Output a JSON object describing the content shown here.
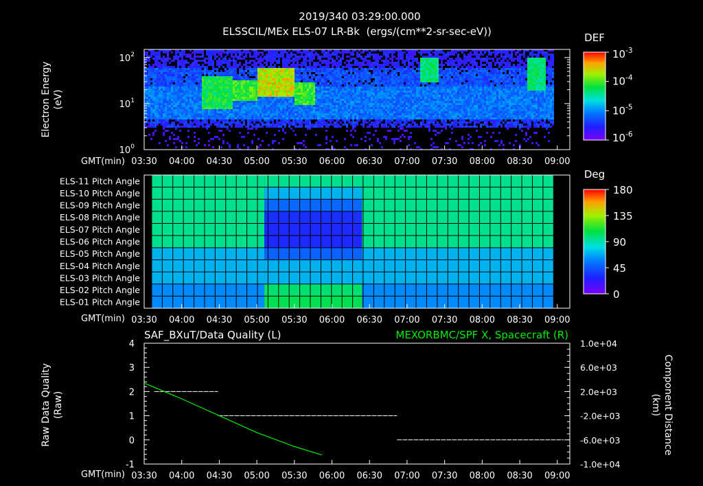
{
  "colors": {
    "background": "#000000",
    "axis": "#ffffff",
    "model_line": "#00ee00",
    "model_label": "#00ee00"
  },
  "header": {
    "timestamp": "2019/340 03:29:00.000",
    "subtitle": "ELSSCIL/MEx ELS-07 LR-Bk  (ergs/(cm**2-sr-sec-eV))"
  },
  "chart_data": [
    {
      "type": "heatmap",
      "name": "electron-spectrogram",
      "ylabel": [
        "Electron Energy",
        "(eV)"
      ],
      "yscale": "log",
      "ylim": [
        1,
        150
      ],
      "yticks": [
        {
          "value": 1,
          "label": "10",
          "exp": "0"
        },
        {
          "value": 10,
          "label": "10",
          "exp": "1"
        },
        {
          "value": 100,
          "label": "10",
          "exp": "2"
        }
      ],
      "x_axis_label": "GMT(min)",
      "xticks": [
        "03:30",
        "04:00",
        "04:30",
        "05:00",
        "05:30",
        "06:00",
        "06:30",
        "07:00",
        "07:30",
        "08:00",
        "08:30",
        "09:00"
      ],
      "xlim_min": [
        210,
        550
      ],
      "data_end_min": 537,
      "colorbar": {
        "title": "DEF",
        "scale": "log",
        "ticks": [
          {
            "label": "10",
            "exp": "-3"
          },
          {
            "label": "10",
            "exp": "-4"
          },
          {
            "label": "10",
            "exp": "-5"
          },
          {
            "label": "10",
            "exp": "-6"
          }
        ]
      },
      "features": [
        {
          "t_min": 256,
          "t_max": 280,
          "e_min": 8,
          "e_max": 40,
          "level": 0.65
        },
        {
          "t_min": 280,
          "t_max": 300,
          "e_min": 12,
          "e_max": 35,
          "level": 0.7
        },
        {
          "t_min": 300,
          "t_max": 330,
          "e_min": 15,
          "e_max": 60,
          "level": 0.85
        },
        {
          "t_min": 330,
          "t_max": 346,
          "e_min": 10,
          "e_max": 30,
          "level": 0.7
        },
        {
          "t_min": 430,
          "t_max": 445,
          "e_min": 30,
          "e_max": 110,
          "level": 0.6
        },
        {
          "t_min": 515,
          "t_max": 530,
          "e_min": 20,
          "e_max": 100,
          "level": 0.6
        }
      ]
    },
    {
      "type": "heatmap",
      "name": "pitch-angle",
      "rows": [
        "ELS-11 Pitch Angle",
        "ELS-10 Pitch Angle",
        "ELS-09 Pitch Angle",
        "ELS-08 Pitch Angle",
        "ELS-07 Pitch Angle",
        "ELS-06 Pitch Angle",
        "ELS-05 Pitch Angle",
        "ELS-04 Pitch Angle",
        "ELS-03 Pitch Angle",
        "ELS-02 Pitch Angle",
        "ELS-01 Pitch Angle"
      ],
      "x_axis_label": "GMT(min)",
      "xticks": [
        "03:30",
        "04:00",
        "04:30",
        "05:00",
        "05:30",
        "06:00",
        "06:30",
        "07:00",
        "07:30",
        "08:00",
        "08:30",
        "09:00"
      ],
      "xlim_min": [
        210,
        550
      ],
      "data_start_min": 216,
      "data_end_min": 537,
      "colorbar": {
        "title": "Deg",
        "ticks": [
          "180",
          "135",
          "90",
          "45",
          "0"
        ],
        "vmin": 0,
        "vmax": 180
      },
      "segments": [
        {
          "t_start": 216,
          "t_end": 306,
          "values": [
            95,
            95,
            95,
            95,
            95,
            95,
            70,
            70,
            70,
            60,
            60
          ]
        },
        {
          "t_start": 306,
          "t_end": 384,
          "values": [
            95,
            70,
            50,
            32,
            30,
            30,
            48,
            70,
            70,
            100,
            105
          ]
        },
        {
          "t_start": 384,
          "t_end": 537,
          "values": [
            95,
            95,
            95,
            95,
            95,
            95,
            70,
            70,
            70,
            60,
            60
          ]
        }
      ]
    },
    {
      "type": "line",
      "name": "data-quality",
      "title_left": "SAF_BXuT/Data Quality (L)",
      "title_right": "MEXORBMC/SPF X, Spacecraft (R)",
      "ylabel_left": [
        "Raw Data Quality",
        "(Raw)"
      ],
      "ylabel_right": [
        "Component Distance",
        "(km)"
      ],
      "ylim_left": [
        -1,
        4
      ],
      "yticks_left": [
        "-1",
        "0",
        "1",
        "2",
        "3",
        "4"
      ],
      "ylim_right": [
        -10000,
        10000
      ],
      "yticks_right": [
        "-1.0e+04",
        "-6.0e+03",
        "-2.0e+03",
        "2.0e+03",
        "6.0e+03",
        "1.0e+04"
      ],
      "x_axis_label": "GMT(min)",
      "xticks": [
        "03:30",
        "04:00",
        "04:30",
        "05:00",
        "05:30",
        "06:00",
        "06:30",
        "07:00",
        "07:30",
        "08:00",
        "08:30",
        "09:00"
      ],
      "xlim_min": [
        210,
        550
      ],
      "quality_segments": [
        {
          "t_start": 218,
          "t_end": 269,
          "value": 2
        },
        {
          "t_start": 269,
          "t_end": 412,
          "value": 1
        },
        {
          "t_start": 412,
          "t_end": 545,
          "value": 0
        }
      ],
      "spacecraft_x": {
        "t": [
          210,
          240,
          270,
          300,
          330,
          352
        ],
        "km": [
          3400,
          800,
          -2000,
          -4800,
          -7100,
          -8500
        ]
      }
    }
  ]
}
